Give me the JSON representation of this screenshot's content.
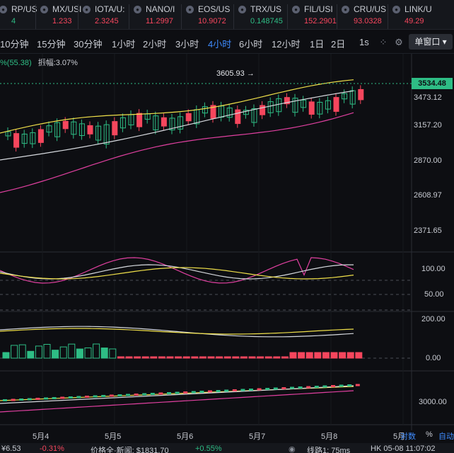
{
  "tickers": [
    {
      "name": "RP/US",
      "price": "4",
      "dir": "up"
    },
    {
      "name": "MX/USI",
      "price": "1.233",
      "dir": "dn"
    },
    {
      "name": "IOTA/U:",
      "price": "2.3245",
      "dir": "dn"
    },
    {
      "name": "NANO/I",
      "price": "11.2997",
      "dir": "dn"
    },
    {
      "name": "EOS/US",
      "price": "10.9072",
      "dir": "dn"
    },
    {
      "name": "TRX/US",
      "price": "0.148745",
      "dir": "up"
    },
    {
      "name": "FIL/USI",
      "price": "152.2901",
      "dir": "dn"
    },
    {
      "name": "CRU/US",
      "price": "93.0328",
      "dir": "dn"
    },
    {
      "name": "LINK/U",
      "price": "49.29",
      "dir": "dn"
    }
  ],
  "intervals": [
    "10分钟",
    "15分钟",
    "30分钟",
    "1小时",
    "2小时",
    "3小时",
    "4小时",
    "6小时",
    "12小时",
    "1日",
    "2日"
  ],
  "active_interval": "4小时",
  "toolbar": {
    "realtime": "1s",
    "window_label": "单窗口"
  },
  "info": {
    "prefix": "%(55.38)",
    "amplitude": "振幅:3.07%"
  },
  "price": {
    "current": "3534.48",
    "second": "3473.12",
    "high_mark": "3605.93",
    "axis_labels": [
      "3157.20",
      "2870.00",
      "2608.97",
      "2371.65"
    ]
  },
  "osc_axis": [
    "100.00",
    "50.00"
  ],
  "vol_axis": [
    "200.00",
    "0.00"
  ],
  "nav_axis": [
    "3000.00"
  ],
  "x_labels": [
    "5月4",
    "5月5",
    "5月6",
    "5月7",
    "5月8",
    "5月"
  ],
  "bottom_right": {
    "log": "对数",
    "pct": "%",
    "auto": "自动"
  },
  "footer": {
    "price": "¥6.53",
    "change": "-0.31%",
    "news": "价格全·新闻: $1831.70",
    "news_change": "+0.55%",
    "line": "线路1: 75ms",
    "time": "HK 05-08 11:07:02"
  },
  "colors": {
    "up": "#2ebd85",
    "down": "#f6465d",
    "accent": "#3f8cff"
  }
}
